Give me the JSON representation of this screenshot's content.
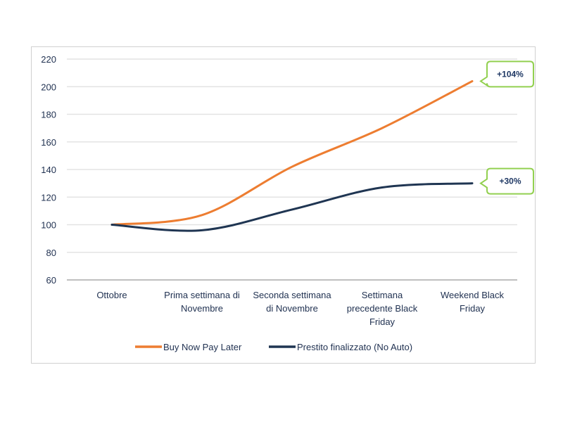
{
  "chart_data": {
    "type": "line",
    "title": "",
    "xlabel": "",
    "ylabel": "",
    "categories": [
      [
        "Ottobre"
      ],
      [
        "Prima settimana di",
        "Novembre"
      ],
      [
        "Seconda settimana",
        "di Novembre"
      ],
      [
        "Settimana",
        "precedente Black",
        "Friday"
      ],
      [
        "Weekend Black",
        "Friday"
      ]
    ],
    "ylim": [
      60,
      220
    ],
    "yticks": [
      60,
      80,
      100,
      120,
      140,
      160,
      180,
      200,
      220
    ],
    "grid": true,
    "legend_position": "bottom",
    "series": [
      {
        "name": "Buy Now Pay Later",
        "color": "#ed7d31",
        "values": [
          100,
          107,
          142,
          170,
          204
        ]
      },
      {
        "name": "Prestito finalizzato (No Auto)",
        "color": "#1f3552",
        "values": [
          100,
          96,
          111,
          127,
          130
        ]
      }
    ],
    "annotations": [
      {
        "series": 0,
        "text": "+104%",
        "border_color": "#92d050"
      },
      {
        "series": 1,
        "text": "+30%",
        "border_color": "#92d050"
      }
    ]
  }
}
